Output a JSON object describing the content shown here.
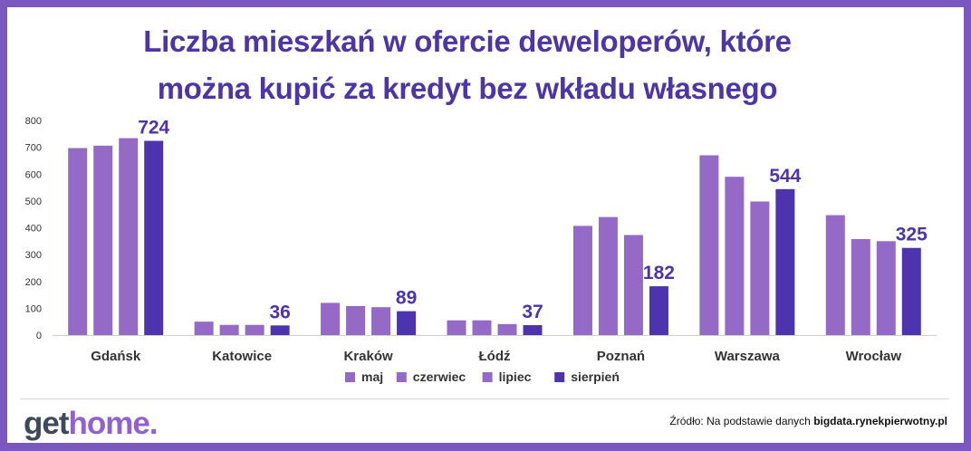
{
  "title_lines": [
    "Liczba mieszkań w ofercie deweloperów, które",
    "można kupić za kredyt bez wkładu własnego"
  ],
  "logo": {
    "part1": "get",
    "part2": "home."
  },
  "source": {
    "prefix": "Źródło: Na podstawie danych",
    "site": "bigdata.rynekpierwotny.pl"
  },
  "colors": {
    "light_bar": "#946ac6",
    "dark_bar": "#4d33ae",
    "label": "#4d33ae",
    "axis_text": "#333333",
    "gridline": "#e0e0e0"
  },
  "chart_data": {
    "type": "bar",
    "categories": [
      "Gdańsk",
      "Katowice",
      "Kraków",
      "Łódź",
      "Poznań",
      "Warszawa",
      "Wrocław"
    ],
    "series": [
      {
        "name": "maj",
        "values": [
          697,
          50,
          120,
          55,
          407,
          670,
          447
        ]
      },
      {
        "name": "czerwiec",
        "values": [
          706,
          38,
          108,
          55,
          440,
          590,
          358
        ]
      },
      {
        "name": "lipiec",
        "values": [
          734,
          38,
          104,
          41,
          373,
          498,
          350
        ]
      },
      {
        "name": "sierpień",
        "values": [
          724,
          36,
          89,
          37,
          182,
          544,
          325
        ]
      }
    ],
    "data_labels_series": "sierpień",
    "data_labels": [
      "724",
      "36",
      "89",
      "37",
      "182",
      "544",
      "325"
    ],
    "yticks": [
      0,
      100,
      200,
      300,
      400,
      500,
      600,
      700,
      800
    ],
    "ylim": [
      0,
      800
    ],
    "grid": false,
    "legend": "bottom-center"
  }
}
